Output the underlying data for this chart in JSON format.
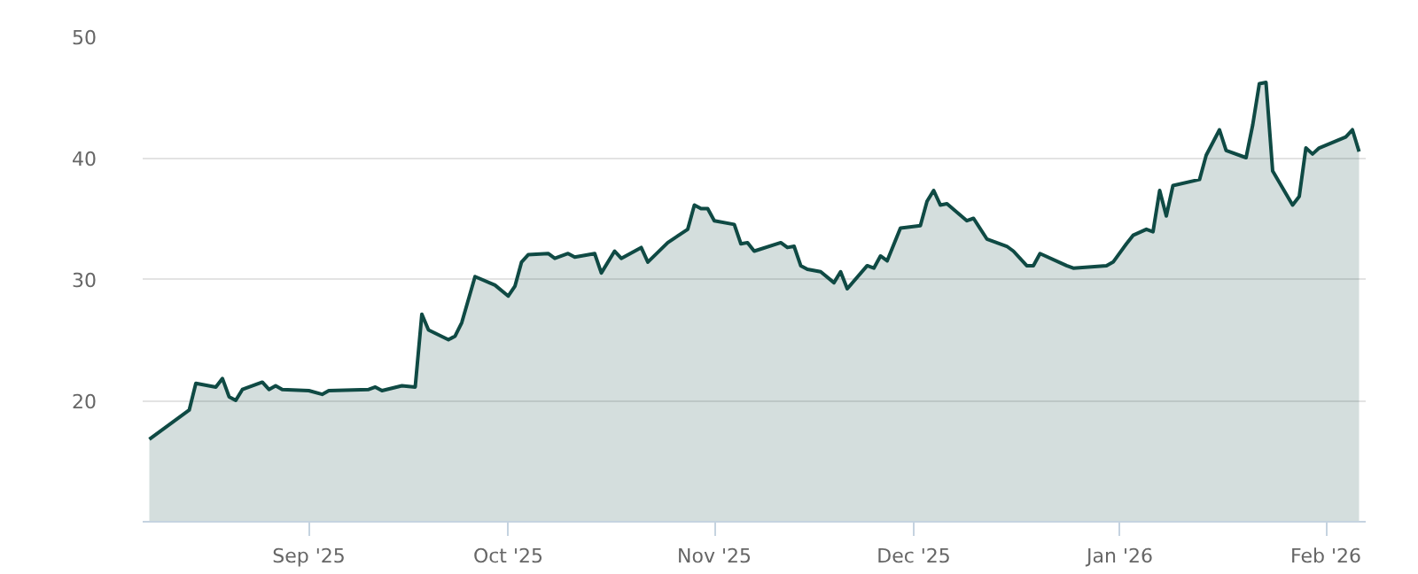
{
  "chart_data": {
    "type": "area",
    "grid": "y",
    "ylim": [
      10,
      50
    ],
    "yticks": [
      20,
      30,
      40,
      50
    ],
    "xlim": [
      "2025-08-07",
      "2026-02-07"
    ],
    "xticks": [
      {
        "value": "2025-09-01",
        "label": "Sep '25"
      },
      {
        "value": "2025-10-01",
        "label": "Oct '25"
      },
      {
        "value": "2025-11-01",
        "label": "Nov '25"
      },
      {
        "value": "2025-12-01",
        "label": "Dec '25"
      },
      {
        "value": "2026-01-01",
        "label": "Jan '26"
      },
      {
        "value": "2026-02-01",
        "label": "Feb '26"
      }
    ],
    "x": [
      "2025-08-08",
      "2025-08-14",
      "2025-08-15",
      "2025-08-18",
      "2025-08-19",
      "2025-08-20",
      "2025-08-21",
      "2025-08-22",
      "2025-08-25",
      "2025-08-26",
      "2025-08-27",
      "2025-08-28",
      "2025-09-01",
      "2025-09-03",
      "2025-09-04",
      "2025-09-10",
      "2025-09-11",
      "2025-09-12",
      "2025-09-15",
      "2025-09-17",
      "2025-09-18",
      "2025-09-19",
      "2025-09-22",
      "2025-09-23",
      "2025-09-24",
      "2025-09-26",
      "2025-09-29",
      "2025-10-01",
      "2025-10-02",
      "2025-10-03",
      "2025-10-04",
      "2025-10-07",
      "2025-10-08",
      "2025-10-10",
      "2025-10-11",
      "2025-10-14",
      "2025-10-15",
      "2025-10-17",
      "2025-10-18",
      "2025-10-21",
      "2025-10-22",
      "2025-10-25",
      "2025-10-28",
      "2025-10-29",
      "2025-10-30",
      "2025-10-31",
      "2025-11-01",
      "2025-11-04",
      "2025-11-05",
      "2025-11-06",
      "2025-11-07",
      "2025-11-11",
      "2025-11-12",
      "2025-11-13",
      "2025-11-14",
      "2025-11-15",
      "2025-11-17",
      "2025-11-19",
      "2025-11-20",
      "2025-11-21",
      "2025-11-24",
      "2025-11-25",
      "2025-11-26",
      "2025-11-27",
      "2025-11-29",
      "2025-12-02",
      "2025-12-03",
      "2025-12-04",
      "2025-12-05",
      "2025-12-06",
      "2025-12-09",
      "2025-12-10",
      "2025-12-12",
      "2025-12-15",
      "2025-12-16",
      "2025-12-18",
      "2025-12-19",
      "2025-12-20",
      "2025-12-24",
      "2025-12-25",
      "2025-12-30",
      "2025-12-31",
      "2026-01-02",
      "2026-01-03",
      "2026-01-05",
      "2026-01-06",
      "2026-01-07",
      "2026-01-08",
      "2026-01-09",
      "2026-01-13",
      "2026-01-14",
      "2026-01-16",
      "2026-01-17",
      "2026-01-20",
      "2026-01-21",
      "2026-01-22",
      "2026-01-23",
      "2026-01-24",
      "2026-01-27",
      "2026-01-28",
      "2026-01-29",
      "2026-01-30",
      "2026-01-31",
      "2026-02-04",
      "2026-02-05",
      "2026-02-06"
    ],
    "series": [
      {
        "color": "#0f4a44",
        "values": [
          16.8,
          19.2,
          21.4,
          21.1,
          21.8,
          20.3,
          20.0,
          20.9,
          21.5,
          20.9,
          21.2,
          20.9,
          20.8,
          20.5,
          20.8,
          20.9,
          21.1,
          20.8,
          21.2,
          21.1,
          27.1,
          25.8,
          25.0,
          25.3,
          26.4,
          30.2,
          29.5,
          28.6,
          29.4,
          31.4,
          32.0,
          32.1,
          31.7,
          32.1,
          31.8,
          32.1,
          30.5,
          32.3,
          31.7,
          32.6,
          31.4,
          33.0,
          34.1,
          36.1,
          35.8,
          35.8,
          34.8,
          34.5,
          32.9,
          33.0,
          32.3,
          33.0,
          32.6,
          32.7,
          31.1,
          30.8,
          30.6,
          29.7,
          30.6,
          29.2,
          31.1,
          30.9,
          31.9,
          31.5,
          34.2,
          34.4,
          36.4,
          37.3,
          36.1,
          36.2,
          34.8,
          35.0,
          33.3,
          32.7,
          32.3,
          31.1,
          31.1,
          32.1,
          31.1,
          30.9,
          31.1,
          31.4,
          32.9,
          33.6,
          34.1,
          33.9,
          37.3,
          35.2,
          37.7,
          38.2,
          40.2,
          42.3,
          40.6,
          40.0,
          42.7,
          46.1,
          46.2,
          38.9,
          36.1,
          36.8,
          40.8,
          40.3,
          40.8,
          41.7,
          42.3,
          40.5
        ]
      }
    ]
  }
}
